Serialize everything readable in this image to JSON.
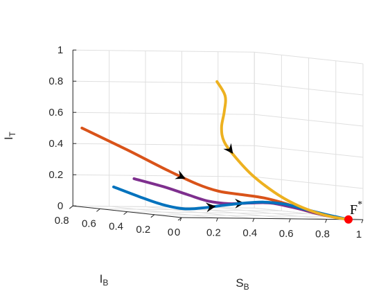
{
  "chart_data": {
    "type": "line3d",
    "xlabel": "S",
    "xlabel_sub": "B",
    "ylabel": "I",
    "ylabel_sub": "B",
    "zlabel": "I",
    "zlabel_sub": "T",
    "xlim": [
      0,
      1
    ],
    "ylim": [
      0,
      0.8
    ],
    "zlim": [
      0,
      1
    ],
    "xticks": [
      "0",
      "0.2",
      "0.4",
      "0.6",
      "0.8",
      "1"
    ],
    "yticks": [
      "0",
      "0.2",
      "0.4",
      "0.6",
      "0.8"
    ],
    "zticks": [
      "0",
      "0.2",
      "0.4",
      "0.6",
      "0.8",
      "1"
    ],
    "grid": true,
    "equilibrium": {
      "label": "F",
      "label_sup": "*",
      "point": [
        0.92,
        0.0,
        0.0
      ],
      "color": "#ff0000"
    },
    "series": [
      {
        "color": "#d95319",
        "points": [
          [
            0.05,
            0.8,
            0.5
          ],
          [
            0.15,
            0.6,
            0.38
          ],
          [
            0.25,
            0.45,
            0.27
          ],
          [
            0.33,
            0.33,
            0.19
          ],
          [
            0.4,
            0.26,
            0.15
          ],
          [
            0.48,
            0.2,
            0.135
          ],
          [
            0.56,
            0.14,
            0.12
          ],
          [
            0.64,
            0.09,
            0.09
          ],
          [
            0.72,
            0.05,
            0.05
          ],
          [
            0.8,
            0.03,
            0.025
          ],
          [
            0.87,
            0.01,
            0.01
          ],
          [
            0.92,
            0.0,
            0.0
          ]
        ],
        "arrow_at": 2
      },
      {
        "color": "#7e2f8e",
        "points": [
          [
            0.15,
            0.55,
            0.2
          ],
          [
            0.22,
            0.42,
            0.16
          ],
          [
            0.28,
            0.33,
            0.12
          ],
          [
            0.35,
            0.27,
            0.085
          ],
          [
            0.42,
            0.21,
            0.075
          ],
          [
            0.5,
            0.16,
            0.085
          ],
          [
            0.58,
            0.12,
            0.09
          ],
          [
            0.66,
            0.08,
            0.07
          ],
          [
            0.74,
            0.05,
            0.045
          ],
          [
            0.82,
            0.025,
            0.02
          ],
          [
            0.92,
            0.0,
            0.0
          ]
        ],
        "arrow_at": 4
      },
      {
        "color": "#0072bd",
        "points": [
          [
            0.0,
            0.5,
            0.15
          ],
          [
            0.05,
            0.38,
            0.1
          ],
          [
            0.1,
            0.28,
            0.06
          ],
          [
            0.16,
            0.2,
            0.04
          ],
          [
            0.22,
            0.15,
            0.05
          ],
          [
            0.3,
            0.11,
            0.07
          ],
          [
            0.4,
            0.08,
            0.09
          ],
          [
            0.5,
            0.06,
            0.1
          ],
          [
            0.6,
            0.04,
            0.09
          ],
          [
            0.7,
            0.025,
            0.06
          ],
          [
            0.8,
            0.01,
            0.03
          ],
          [
            0.92,
            0.0,
            0.0
          ]
        ],
        "arrow_at": 4
      },
      {
        "color": "#edb120",
        "points": [
          [
            0.42,
            0.3,
            0.85
          ],
          [
            0.45,
            0.28,
            0.76
          ],
          [
            0.43,
            0.26,
            0.66
          ],
          [
            0.4,
            0.24,
            0.56
          ],
          [
            0.4,
            0.22,
            0.47
          ],
          [
            0.45,
            0.2,
            0.37
          ],
          [
            0.52,
            0.17,
            0.26
          ],
          [
            0.6,
            0.12,
            0.16
          ],
          [
            0.68,
            0.08,
            0.09
          ],
          [
            0.76,
            0.05,
            0.045
          ],
          [
            0.84,
            0.02,
            0.015
          ],
          [
            0.92,
            0.0,
            0.0
          ]
        ],
        "arrow_at": 4
      }
    ]
  }
}
